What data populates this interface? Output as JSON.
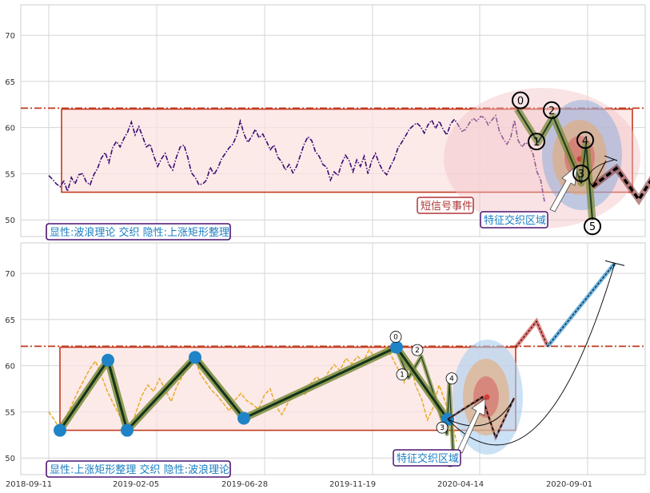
{
  "chart_data": [
    {
      "type": "line",
      "panel": "top",
      "ylim": [
        48.2,
        73.3
      ],
      "yticks": [
        50,
        55,
        60,
        65,
        70
      ],
      "grid": true,
      "colors": {
        "series": "#3d0a73",
        "rect_edge": "#c23a1e",
        "rect_fill": "#fbe3e1",
        "hline": "#c23a1e",
        "wave": "#7d8c3c"
      },
      "hline": 62.1,
      "rect": {
        "x0": 16,
        "x1": 730,
        "y0": 53.0,
        "y1": 62.0
      },
      "series": [
        {
          "values": [
            54.8,
            54.4,
            53.9,
            53.6,
            54.2,
            53.1,
            54.6,
            53.9,
            54.9,
            55.0,
            54.1,
            53.8,
            54.9,
            55.6,
            56.7,
            57.3,
            56.2,
            57.8,
            58.5,
            57.9,
            58.8,
            59.5,
            60.6,
            59.2,
            60.1,
            59.0,
            57.9,
            58.2,
            56.9,
            55.8,
            56.6,
            57.2,
            56.0,
            55.4,
            56.8,
            57.9,
            58.1,
            56.8,
            55.1,
            54.6,
            53.8,
            53.9,
            54.3,
            55.7,
            54.9,
            55.6,
            56.6,
            57.2,
            57.8,
            58.2,
            59.1,
            60.7,
            59.3,
            58.4,
            59.0,
            59.8,
            58.9,
            59.3,
            58.5,
            57.6,
            58.1,
            56.8,
            56.3,
            55.4,
            56.0,
            55.1,
            55.8,
            57.0,
            58.2,
            59.0,
            58.6,
            57.4,
            56.9,
            56.0,
            55.7,
            54.3,
            55.2,
            54.8,
            56.1,
            57.0,
            56.4,
            55.2,
            56.5,
            55.8,
            56.9,
            55.0,
            56.4,
            57.2,
            56.1,
            55.3,
            54.9,
            55.8,
            56.6,
            57.8,
            58.4,
            59.1,
            59.8,
            60.2,
            60.5,
            60.1,
            59.4,
            60.3,
            60.8,
            59.9,
            60.7,
            59.8,
            59.2,
            60.4,
            60.9,
            60.3,
            59.6,
            59.8,
            60.5,
            61.0,
            60.7,
            61.2,
            61.1,
            60.3,
            60.8,
            61.3,
            59.6,
            58.8,
            58.2,
            58.9,
            60.8,
            58.6,
            57.9,
            58.4,
            58.0,
            57.1,
            55.2,
            54.3,
            52.0
          ]
        }
      ],
      "wave_points": [
        {
          "label": "0",
          "x": 586,
          "y": 62.0
        },
        {
          "label": "1",
          "x": 612,
          "y": 58.4
        },
        {
          "label": "2",
          "x": 631,
          "y": 61.2
        },
        {
          "label": "3",
          "x": 666,
          "y": 54.0
        },
        {
          "label": "4",
          "x": 672,
          "y": 58.3
        },
        {
          "label": "5",
          "x": 680,
          "y": 50.0
        }
      ],
      "annotations": [
        {
          "text": "短信号事件",
          "color": "#b03535"
        },
        {
          "text": "特征交织区域",
          "color": "#1a7ec2"
        }
      ],
      "label": "显性:波浪理论 交织 隐性:上涨矩形整理",
      "forecast_path": [
        {
          "x": 680,
          "y": 53.6
        },
        {
          "x": 710,
          "y": 55.6
        },
        {
          "x": 738,
          "y": 52.2
        },
        {
          "x": 768,
          "y": 56.3
        }
      ]
    },
    {
      "type": "line",
      "panel": "bottom",
      "ylim": [
        48.2,
        73.3
      ],
      "yticks": [
        50,
        55,
        60,
        65,
        70
      ],
      "xticks": [
        "2018-09-11",
        "2019-02-05",
        "2019-06-28",
        "2019-11-19",
        "2020-04-14",
        "2020-09-01"
      ],
      "grid": true,
      "colors": {
        "series": "#e9ae2f",
        "rect_edge": "#c23a1e",
        "rect_fill": "#fbe3e1",
        "hline": "#c23a1e",
        "wave": "#7d8c3c",
        "pivot": "#1f84c7"
      },
      "hline": 62.1,
      "rect": {
        "x0": 0,
        "x1": 570,
        "y0": 53.0,
        "y1": 62.0
      },
      "series": [
        {
          "values": [
            55.0,
            54.1,
            53.0,
            54.5,
            55.8,
            57.2,
            58.4,
            59.6,
            60.5,
            59.0,
            57.3,
            56.0,
            54.8,
            53.6,
            53.1,
            55.0,
            56.8,
            57.9,
            57.2,
            58.6,
            57.4,
            56.1,
            57.8,
            58.9,
            60.4,
            61.0,
            59.1,
            58.2,
            57.3,
            56.7,
            55.9,
            55.1,
            56.3,
            57.0,
            56.2,
            55.8,
            55.3,
            56.8,
            57.5,
            55.6,
            54.7,
            55.9,
            56.8,
            57.4,
            56.9,
            58.1,
            58.8,
            58.2,
            59.3,
            60.1,
            59.5,
            60.8,
            60.2,
            61.0,
            60.5,
            61.7,
            60.9,
            61.3,
            62.0,
            60.8,
            59.6,
            58.2,
            60.5,
            57.8,
            56.4,
            54.1,
            55.5,
            57.9,
            56.2,
            54.3,
            51.8
          ]
        }
      ],
      "wave_points": [
        {
          "label": "0",
          "x": 420,
          "y": 62.0
        },
        {
          "label": "1",
          "x": 436,
          "y": 58.7
        },
        {
          "label": "2",
          "x": 452,
          "y": 61.0
        },
        {
          "label": "3",
          "x": 484,
          "y": 52.6
        },
        {
          "label": "4",
          "x": 487,
          "y": 58.1
        },
        {
          "label": "5",
          "x": 492,
          "y": 50.2
        }
      ],
      "pivots": [
        {
          "x": 0,
          "y": 53.0
        },
        {
          "x": 60,
          "y": 60.6
        },
        {
          "x": 84,
          "y": 53.0
        },
        {
          "x": 169,
          "y": 60.9
        },
        {
          "x": 230,
          "y": 54.3
        },
        {
          "x": 421,
          "y": 62.0
        },
        {
          "x": 485,
          "y": 54.2
        }
      ],
      "annotations": [
        {
          "text": "特征交织区域",
          "color": "#1a7ec2"
        }
      ],
      "label": "显性:上涨矩形整理 交织 隐性:波浪理论",
      "forecast_path": [
        {
          "x": 485,
          "y": 54.2
        },
        {
          "x": 528,
          "y": 56.6
        },
        {
          "x": 545,
          "y": 52.2
        },
        {
          "x": 568,
          "y": 56.5
        }
      ],
      "target_path": [
        {
          "x": 570,
          "y": 62.0
        },
        {
          "x": 596,
          "y": 64.8
        },
        {
          "x": 610,
          "y": 62.1
        },
        {
          "x": 694,
          "y": 71.1
        }
      ]
    }
  ]
}
